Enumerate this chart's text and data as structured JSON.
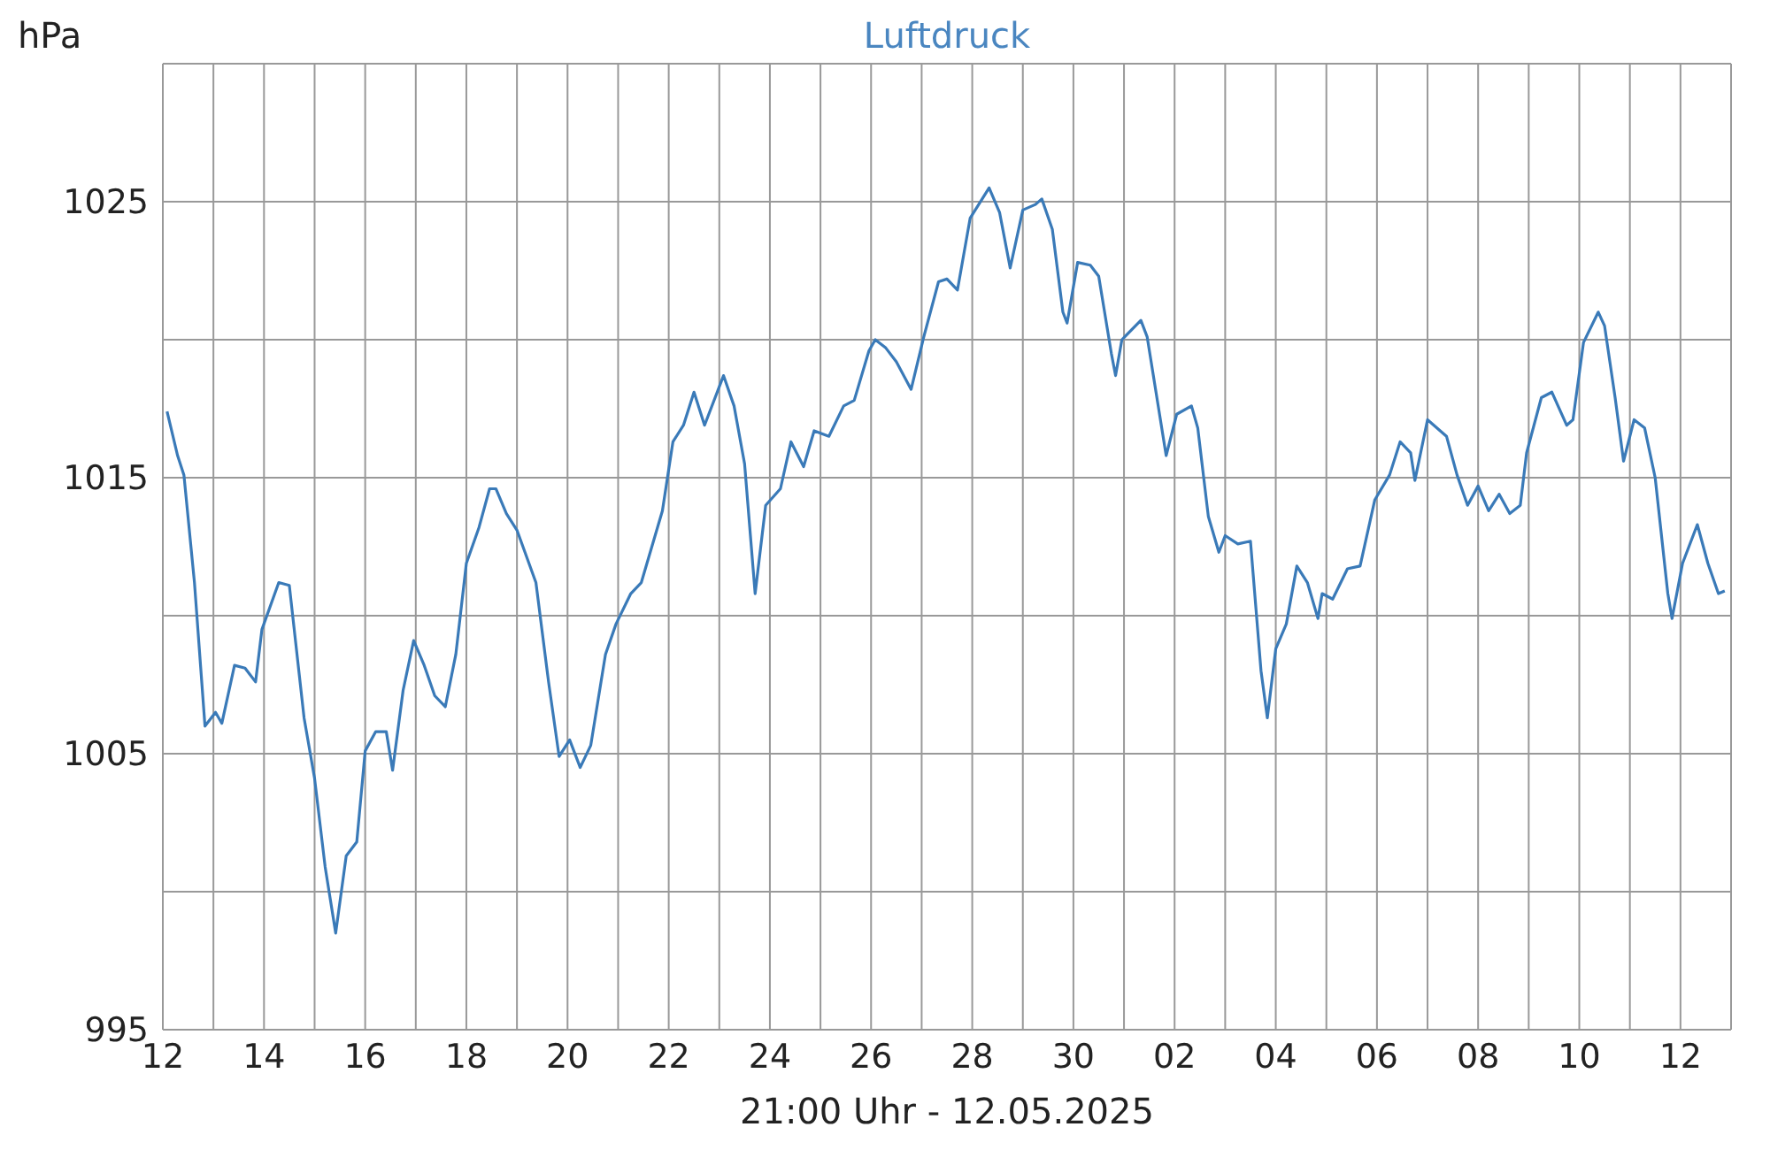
{
  "chart_data": {
    "type": "line",
    "title": "Luftdruck",
    "ylabel": "hPa",
    "xlabel": "21:00 Uhr - 12.05.2025",
    "x": [
      "2025-04-12T02:00",
      "2025-04-12T07:00",
      "2025-04-12T10:00",
      "2025-04-12T15:00",
      "2025-04-12T20:00",
      "2025-04-13T01:00",
      "2025-04-13T04:00",
      "2025-04-13T10:00",
      "2025-04-13T15:00",
      "2025-04-13T20:00",
      "2025-04-13T23:00",
      "2025-04-14T07:00",
      "2025-04-14T12:00",
      "2025-04-14T19:00",
      "2025-04-15T00:00",
      "2025-04-15T05:00",
      "2025-04-15T10:00",
      "2025-04-15T15:00",
      "2025-04-15T20:00",
      "2025-04-16T00:00",
      "2025-04-16T05:00",
      "2025-04-16T10:00",
      "2025-04-16T13:00",
      "2025-04-16T18:00",
      "2025-04-16T23:00",
      "2025-04-17T04:00",
      "2025-04-17T09:00",
      "2025-04-17T14:00",
      "2025-04-17T19:00",
      "2025-04-18T00:00",
      "2025-04-18T06:00",
      "2025-04-18T11:00",
      "2025-04-18T14:00",
      "2025-04-18T19:00",
      "2025-04-19T00:00",
      "2025-04-19T09:00",
      "2025-04-19T15:00",
      "2025-04-19T20:00",
      "2025-04-20T01:00",
      "2025-04-20T06:00",
      "2025-04-20T11:00",
      "2025-04-20T18:00",
      "2025-04-20T23:00",
      "2025-04-21T06:00",
      "2025-04-21T11:00",
      "2025-04-21T21:00",
      "2025-04-22T02:00",
      "2025-04-22T07:00",
      "2025-04-22T12:00",
      "2025-04-22T17:00",
      "2025-04-23T02:00",
      "2025-04-23T07:00",
      "2025-04-23T12:00",
      "2025-04-23T17:00",
      "2025-04-23T22:00",
      "2025-04-24T05:00",
      "2025-04-24T10:00",
      "2025-04-24T16:00",
      "2025-04-24T21:00",
      "2025-04-25T04:00",
      "2025-04-25T11:00",
      "2025-04-25T16:00",
      "2025-04-25T23:00",
      "2025-04-26T02:00",
      "2025-04-26T07:00",
      "2025-04-26T12:00",
      "2025-04-26T19:00",
      "2025-04-27T01:00",
      "2025-04-27T08:00",
      "2025-04-27T12:00",
      "2025-04-27T17:00",
      "2025-04-27T23:00",
      "2025-04-28T08:00",
      "2025-04-28T13:00",
      "2025-04-28T18:00",
      "2025-04-29T00:00",
      "2025-04-29T06:00",
      "2025-04-29T09:00",
      "2025-04-29T14:00",
      "2025-04-29T19:00",
      "2025-04-29T21:00",
      "2025-04-30T02:00",
      "2025-04-30T08:00",
      "2025-04-30T12:00",
      "2025-04-30T18:00",
      "2025-04-30T20:00",
      "2025-04-30T23:00",
      "2025-05-01T08:00",
      "2025-05-01T11:00",
      "2025-05-01T20:00",
      "2025-05-02T01:00",
      "2025-05-02T08:00",
      "2025-05-02T11:00",
      "2025-05-02T16:00",
      "2025-05-02T21:00",
      "2025-05-03T00:00",
      "2025-05-03T06:00",
      "2025-05-03T12:00",
      "2025-05-03T17:00",
      "2025-05-03T20:00",
      "2025-05-04T00:00",
      "2025-05-04T05:00",
      "2025-05-04T10:00",
      "2025-05-04T15:00",
      "2025-05-04T20:00",
      "2025-05-04T22:00",
      "2025-05-05T03:00",
      "2025-05-05T10:00",
      "2025-05-05T16:00",
      "2025-05-05T23:00",
      "2025-05-06T06:00",
      "2025-05-06T11:00",
      "2025-05-06T16:00",
      "2025-05-06T18:00",
      "2025-05-07T00:00",
      "2025-05-07T09:00",
      "2025-05-07T14:00",
      "2025-05-07T19:00",
      "2025-05-08T00:00",
      "2025-05-08T05:00",
      "2025-05-08T10:00",
      "2025-05-08T15:00",
      "2025-05-08T20:00",
      "2025-05-08T23:00",
      "2025-05-09T06:00",
      "2025-05-09T11:00",
      "2025-05-09T18:00",
      "2025-05-09T21:00",
      "2025-05-10T02:00",
      "2025-05-10T09:00",
      "2025-05-10T12:00",
      "2025-05-10T17:00",
      "2025-05-10T21:00",
      "2025-05-11T02:00",
      "2025-05-11T07:00",
      "2025-05-11T12:00",
      "2025-05-11T18:00",
      "2025-05-11T20:00",
      "2025-05-12T01:00",
      "2025-05-12T08:00",
      "2025-05-12T13:00",
      "2025-05-12T18:00",
      "2025-05-12T21:00"
    ],
    "series": [
      {
        "color": "#3a7ab8",
        "values": [
          1017.4,
          1015.8,
          1015.1,
          1011.2,
          1006.0,
          1006.5,
          1006.1,
          1008.2,
          1008.1,
          1007.6,
          1009.5,
          1011.2,
          1011.1,
          1006.3,
          1004.1,
          1000.9,
          998.5,
          1001.3,
          1001.8,
          1005.1,
          1005.8,
          1005.8,
          1004.4,
          1007.3,
          1009.1,
          1008.2,
          1007.1,
          1006.7,
          1008.6,
          1011.9,
          1013.2,
          1014.6,
          1014.6,
          1013.7,
          1013.1,
          1011.2,
          1007.6,
          1004.9,
          1005.5,
          1004.5,
          1005.3,
          1008.6,
          1009.7,
          1010.8,
          1011.2,
          1013.8,
          1016.3,
          1016.9,
          1018.1,
          1016.9,
          1018.7,
          1017.6,
          1015.5,
          1010.8,
          1014.0,
          1014.6,
          1016.3,
          1015.4,
          1016.7,
          1016.5,
          1017.6,
          1017.8,
          1019.6,
          1020.0,
          1019.7,
          1019.2,
          1018.2,
          1020.1,
          1022.1,
          1022.2,
          1021.8,
          1024.4,
          1025.5,
          1024.6,
          1022.6,
          1024.7,
          1024.9,
          1025.1,
          1024.0,
          1021.0,
          1020.6,
          1022.8,
          1022.7,
          1022.3,
          1019.5,
          1018.7,
          1020.0,
          1020.7,
          1020.1,
          1015.8,
          1017.3,
          1017.6,
          1016.8,
          1013.6,
          1012.3,
          1012.9,
          1012.6,
          1012.7,
          1008.0,
          1006.3,
          1008.8,
          1009.7,
          1011.8,
          1011.2,
          1009.9,
          1010.8,
          1010.6,
          1011.7,
          1011.8,
          1014.2,
          1015.1,
          1016.3,
          1015.9,
          1014.9,
          1017.1,
          1016.5,
          1015.1,
          1014.0,
          1014.7,
          1013.8,
          1014.4,
          1013.7,
          1014.0,
          1015.9,
          1017.9,
          1018.1,
          1016.9,
          1017.1,
          1019.9,
          1021.0,
          1020.5,
          1017.9,
          1015.6,
          1017.1,
          1016.8,
          1015.0,
          1010.8,
          1009.9,
          1011.9,
          1013.3,
          1011.9,
          1010.8,
          1010.9
        ]
      }
    ],
    "xlim": [
      "2025-04-12",
      "2025-05-13"
    ],
    "xticks": [
      {
        "value": "2025-04-12",
        "label": "12"
      },
      {
        "value": "2025-04-13",
        "label": null
      },
      {
        "value": "2025-04-14",
        "label": "14"
      },
      {
        "value": "2025-04-15",
        "label": null
      },
      {
        "value": "2025-04-16",
        "label": "16"
      },
      {
        "value": "2025-04-17",
        "label": null
      },
      {
        "value": "2025-04-18",
        "label": "18"
      },
      {
        "value": "2025-04-19",
        "label": null
      },
      {
        "value": "2025-04-20",
        "label": "20"
      },
      {
        "value": "2025-04-21",
        "label": null
      },
      {
        "value": "2025-04-22",
        "label": "22"
      },
      {
        "value": "2025-04-23",
        "label": null
      },
      {
        "value": "2025-04-24",
        "label": "24"
      },
      {
        "value": "2025-04-25",
        "label": null
      },
      {
        "value": "2025-04-26",
        "label": "26"
      },
      {
        "value": "2025-04-27",
        "label": null
      },
      {
        "value": "2025-04-28",
        "label": "28"
      },
      {
        "value": "2025-04-29",
        "label": null
      },
      {
        "value": "2025-04-30",
        "label": "30"
      },
      {
        "value": "2025-05-01",
        "label": null
      },
      {
        "value": "2025-05-02",
        "label": "02"
      },
      {
        "value": "2025-05-03",
        "label": null
      },
      {
        "value": "2025-05-04",
        "label": "04"
      },
      {
        "value": "2025-05-05",
        "label": null
      },
      {
        "value": "2025-05-06",
        "label": "06"
      },
      {
        "value": "2025-05-07",
        "label": null
      },
      {
        "value": "2025-05-08",
        "label": "08"
      },
      {
        "value": "2025-05-09",
        "label": null
      },
      {
        "value": "2025-05-10",
        "label": "10"
      },
      {
        "value": "2025-05-11",
        "label": null
      },
      {
        "value": "2025-05-12",
        "label": "12"
      },
      {
        "value": "2025-05-13",
        "label": null
      }
    ],
    "ylim": [
      995,
      1030
    ],
    "yticks": [
      995,
      {
        "value": 1000,
        "label": null
      },
      1005,
      {
        "value": 1010,
        "label": null
      },
      1015,
      {
        "value": 1020,
        "label": null
      },
      1025,
      {
        "value": 1030,
        "label": null
      }
    ],
    "grid": true,
    "legend": false
  }
}
